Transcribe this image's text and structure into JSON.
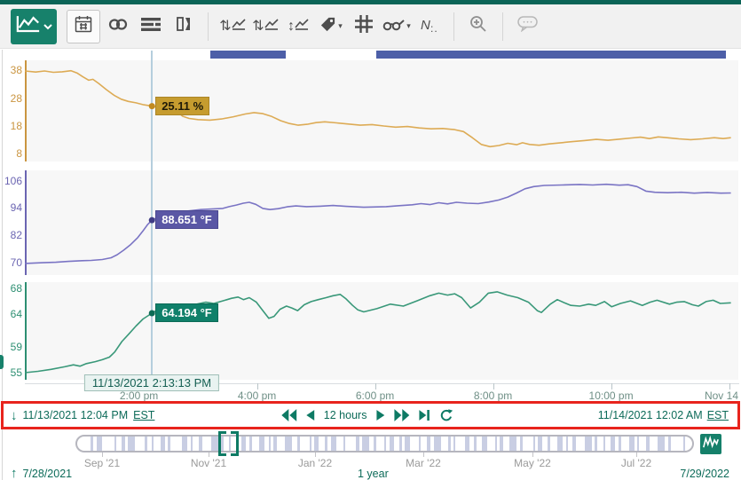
{
  "colors": {
    "accent_teal": "#0e7a64",
    "brand_dark_teal": "#0b6457",
    "event_bar_blue": "#4d5fa8",
    "annotation_red": "#e8241d",
    "cursor_line": "#b5cedd",
    "scrubber_stripe": "#c9cee3"
  },
  "toolbar": {
    "icons": [
      "trend-display",
      "calendar",
      "link",
      "details",
      "pane-toggle",
      "stacked-scales",
      "stacked-scales-alt",
      "single-scale",
      "tag",
      "grid",
      "trend-cursors",
      "value-labels",
      "zoom-in",
      "comments"
    ]
  },
  "controls": {
    "start_date": "11/13/2021 12:04 PM",
    "start_tz": "EST",
    "interval": "12 hours",
    "end_date": "11/14/2021 12:02 AM",
    "end_tz": "EST"
  },
  "timeline": {
    "months": [
      "Sep '21",
      "Nov '21",
      "Jan '22",
      "Mar '22",
      "May '22",
      "Jul '22"
    ],
    "month_centers": [
      115,
      235,
      355,
      477,
      600,
      717
    ],
    "range_start": "7/28/2021",
    "range_span": "1 year",
    "range_end": "7/29/2022"
  },
  "chart_data": {
    "type": "line",
    "x_axis": {
      "range_hours": [
        12.0667,
        24.0333
      ],
      "ticks": [
        {
          "hour": 14,
          "label": "2:00 pm"
        },
        {
          "hour": 16,
          "label": "4:00 pm"
        },
        {
          "hour": 18,
          "label": "6:00 pm"
        },
        {
          "hour": 20,
          "label": "8:00 pm"
        },
        {
          "hour": 22,
          "label": "10:00 pm"
        },
        {
          "hour": 24,
          "label": "Nov 14"
        }
      ]
    },
    "cursor": {
      "hour": 14.2203,
      "timestamp": "11/13/2021 2:13:13 PM"
    },
    "event_bars": [
      {
        "start_hour": 15.21,
        "end_hour": 16.49
      },
      {
        "start_hour": 18.02,
        "end_hour": 23.95
      }
    ],
    "charts": [
      {
        "unit": "%",
        "cursor_label": "25.11 %",
        "cursor_value": 25.11,
        "line_color": "#ddab55",
        "tick_color": "#ca9540",
        "dot_color": "#c28a1e",
        "label_bg": "#c69c2f",
        "label_border": "#ab8526",
        "label_fg": "#1f1a08",
        "yticks": [
          38,
          28,
          18,
          8
        ],
        "ylim": [
          5.3,
          41.5
        ],
        "points": [
          [
            12.07,
            37.7
          ],
          [
            12.25,
            37.3
          ],
          [
            12.4,
            37.7
          ],
          [
            12.55,
            37.2
          ],
          [
            12.7,
            37.4
          ],
          [
            12.85,
            37.8
          ],
          [
            12.95,
            37.0
          ],
          [
            13.05,
            35.6
          ],
          [
            13.15,
            34.4
          ],
          [
            13.22,
            34.7
          ],
          [
            13.32,
            33.2
          ],
          [
            13.45,
            31.0
          ],
          [
            13.58,
            29.0
          ],
          [
            13.7,
            27.6
          ],
          [
            13.82,
            26.8
          ],
          [
            13.95,
            26.3
          ],
          [
            14.08,
            25.6
          ],
          [
            14.22,
            25.11
          ],
          [
            14.34,
            24.5
          ],
          [
            14.44,
            24.9
          ],
          [
            14.54,
            24.6
          ],
          [
            14.64,
            23.2
          ],
          [
            14.74,
            21.5
          ],
          [
            14.85,
            20.7
          ],
          [
            15.0,
            20.3
          ],
          [
            15.2,
            20.1
          ],
          [
            15.4,
            20.5
          ],
          [
            15.6,
            21.3
          ],
          [
            15.8,
            22.3
          ],
          [
            15.95,
            22.8
          ],
          [
            16.1,
            22.4
          ],
          [
            16.25,
            21.4
          ],
          [
            16.4,
            19.9
          ],
          [
            16.55,
            18.9
          ],
          [
            16.7,
            18.3
          ],
          [
            16.85,
            18.6
          ],
          [
            17.0,
            19.2
          ],
          [
            17.15,
            19.5
          ],
          [
            17.35,
            19.1
          ],
          [
            17.55,
            18.7
          ],
          [
            17.75,
            18.3
          ],
          [
            17.95,
            18.5
          ],
          [
            18.15,
            18.0
          ],
          [
            18.35,
            17.6
          ],
          [
            18.55,
            17.8
          ],
          [
            18.75,
            17.3
          ],
          [
            18.95,
            17.0
          ],
          [
            19.15,
            17.1
          ],
          [
            19.35,
            16.7
          ],
          [
            19.5,
            16.0
          ],
          [
            19.65,
            13.8
          ],
          [
            19.8,
            11.4
          ],
          [
            19.95,
            10.6
          ],
          [
            20.1,
            11.0
          ],
          [
            20.25,
            11.8
          ],
          [
            20.4,
            11.3
          ],
          [
            20.5,
            12.0
          ],
          [
            20.62,
            11.4
          ],
          [
            20.78,
            11.1
          ],
          [
            20.95,
            11.6
          ],
          [
            21.15,
            12.0
          ],
          [
            21.35,
            12.4
          ],
          [
            21.55,
            12.8
          ],
          [
            21.75,
            13.2
          ],
          [
            21.95,
            12.9
          ],
          [
            22.15,
            13.3
          ],
          [
            22.35,
            13.7
          ],
          [
            22.5,
            14.0
          ],
          [
            22.65,
            13.5
          ],
          [
            22.8,
            14.1
          ],
          [
            22.95,
            13.8
          ],
          [
            23.15,
            13.4
          ],
          [
            23.35,
            13.1
          ],
          [
            23.55,
            13.4
          ],
          [
            23.75,
            13.8
          ],
          [
            23.9,
            13.5
          ],
          [
            24.03,
            13.8
          ]
        ]
      },
      {
        "unit": "°F",
        "cursor_label": "88.651 °F",
        "cursor_value": 88.651,
        "line_color": "#7a74c4",
        "tick_color": "#6b65b2",
        "dot_color": "#3f3c85",
        "label_bg": "#5a57a5",
        "label_border": "#4a4790",
        "label_fg": "#ffffff",
        "yticks": [
          106,
          94,
          82,
          70
        ],
        "ylim": [
          64.6,
          110.5
        ],
        "points": [
          [
            12.07,
            69.7
          ],
          [
            12.37,
            70.0
          ],
          [
            12.59,
            70.2
          ],
          [
            12.81,
            70.6
          ],
          [
            13.04,
            70.9
          ],
          [
            13.19,
            71.0
          ],
          [
            13.38,
            71.4
          ],
          [
            13.53,
            72.2
          ],
          [
            13.63,
            73.5
          ],
          [
            13.74,
            75.5
          ],
          [
            13.86,
            78.0
          ],
          [
            13.98,
            81.0
          ],
          [
            14.07,
            84.0
          ],
          [
            14.15,
            86.8
          ],
          [
            14.22,
            88.651
          ],
          [
            14.31,
            89.8
          ],
          [
            14.46,
            90.8
          ],
          [
            14.6,
            91.6
          ],
          [
            14.83,
            92.7
          ],
          [
            15.05,
            93.3
          ],
          [
            15.27,
            93.6
          ],
          [
            15.42,
            93.8
          ],
          [
            15.53,
            94.6
          ],
          [
            15.65,
            95.3
          ],
          [
            15.77,
            96.1
          ],
          [
            15.87,
            96.5
          ],
          [
            15.98,
            95.6
          ],
          [
            16.1,
            93.8
          ],
          [
            16.22,
            93.3
          ],
          [
            16.36,
            93.7
          ],
          [
            16.51,
            94.5
          ],
          [
            16.66,
            94.9
          ],
          [
            16.84,
            94.6
          ],
          [
            17.07,
            94.8
          ],
          [
            17.29,
            95.1
          ],
          [
            17.51,
            94.7
          ],
          [
            17.66,
            94.5
          ],
          [
            17.81,
            94.3
          ],
          [
            18.19,
            94.6
          ],
          [
            18.41,
            95.0
          ],
          [
            18.63,
            95.4
          ],
          [
            18.78,
            95.9
          ],
          [
            18.93,
            95.5
          ],
          [
            19.08,
            96.3
          ],
          [
            19.23,
            95.8
          ],
          [
            19.38,
            96.5
          ],
          [
            19.56,
            96.1
          ],
          [
            19.75,
            95.9
          ],
          [
            19.93,
            96.6
          ],
          [
            20.1,
            97.5
          ],
          [
            20.25,
            98.8
          ],
          [
            20.4,
            100.6
          ],
          [
            20.54,
            102.4
          ],
          [
            20.69,
            103.4
          ],
          [
            20.87,
            103.9
          ],
          [
            21.17,
            104.1
          ],
          [
            21.47,
            104.3
          ],
          [
            21.69,
            104.1
          ],
          [
            21.92,
            104.4
          ],
          [
            22.14,
            104.0
          ],
          [
            22.29,
            104.2
          ],
          [
            22.44,
            103.4
          ],
          [
            22.59,
            101.4
          ],
          [
            22.74,
            100.9
          ],
          [
            22.96,
            100.7
          ],
          [
            23.19,
            100.9
          ],
          [
            23.41,
            100.5
          ],
          [
            23.63,
            100.8
          ],
          [
            23.86,
            100.5
          ],
          [
            24.03,
            100.6
          ]
        ]
      },
      {
        "unit": "°F",
        "cursor_label": "64.194 °F",
        "cursor_value": 64.194,
        "line_color": "#399879",
        "tick_color": "#2d8f72",
        "dot_color": "#0c6b55",
        "label_bg": "#10806a",
        "label_border": "#0a6b57",
        "label_fg": "#ffffff",
        "yticks": [
          68,
          64,
          59,
          55
        ],
        "ylim": [
          53.9,
          69.0
        ],
        "points": [
          [
            12.07,
            55.0
          ],
          [
            12.29,
            55.2
          ],
          [
            12.51,
            55.5
          ],
          [
            12.74,
            55.9
          ],
          [
            12.89,
            56.2
          ],
          [
            13.0,
            56.0
          ],
          [
            13.11,
            56.4
          ],
          [
            13.26,
            56.7
          ],
          [
            13.38,
            57.0
          ],
          [
            13.5,
            57.4
          ],
          [
            13.59,
            58.2
          ],
          [
            13.71,
            59.8
          ],
          [
            13.83,
            61.0
          ],
          [
            13.95,
            62.2
          ],
          [
            14.07,
            63.3
          ],
          [
            14.22,
            64.194
          ],
          [
            14.31,
            64.7
          ],
          [
            14.42,
            64.5
          ],
          [
            14.54,
            65.0
          ],
          [
            14.68,
            65.4
          ],
          [
            14.83,
            65.3
          ],
          [
            14.98,
            65.6
          ],
          [
            15.13,
            65.9
          ],
          [
            15.27,
            65.7
          ],
          [
            15.42,
            66.1
          ],
          [
            15.57,
            66.5
          ],
          [
            15.68,
            66.7
          ],
          [
            15.77,
            66.3
          ],
          [
            15.87,
            66.6
          ],
          [
            15.99,
            65.9
          ],
          [
            16.1,
            64.6
          ],
          [
            16.2,
            63.4
          ],
          [
            16.29,
            63.7
          ],
          [
            16.39,
            64.8
          ],
          [
            16.5,
            65.3
          ],
          [
            16.59,
            65.0
          ],
          [
            16.69,
            64.6
          ],
          [
            16.8,
            65.5
          ],
          [
            16.92,
            66.0
          ],
          [
            17.04,
            66.3
          ],
          [
            17.17,
            66.6
          ],
          [
            17.29,
            66.9
          ],
          [
            17.41,
            67.1
          ],
          [
            17.51,
            66.4
          ],
          [
            17.62,
            65.4
          ],
          [
            17.71,
            64.7
          ],
          [
            17.81,
            64.4
          ],
          [
            18.03,
            64.9
          ],
          [
            18.26,
            65.6
          ],
          [
            18.48,
            65.3
          ],
          [
            18.71,
            66.1
          ],
          [
            18.93,
            66.9
          ],
          [
            19.08,
            67.3
          ],
          [
            19.23,
            67.0
          ],
          [
            19.35,
            67.2
          ],
          [
            19.47,
            66.6
          ],
          [
            19.62,
            65.0
          ],
          [
            19.77,
            65.9
          ],
          [
            19.92,
            67.3
          ],
          [
            20.07,
            67.5
          ],
          [
            20.24,
            67.0
          ],
          [
            20.42,
            66.6
          ],
          [
            20.6,
            65.9
          ],
          [
            20.75,
            64.6
          ],
          [
            20.82,
            64.3
          ],
          [
            20.97,
            65.6
          ],
          [
            21.09,
            66.3
          ],
          [
            21.21,
            65.8
          ],
          [
            21.32,
            65.4
          ],
          [
            21.47,
            65.3
          ],
          [
            21.62,
            65.6
          ],
          [
            21.74,
            65.4
          ],
          [
            21.89,
            66.0
          ],
          [
            22.01,
            65.2
          ],
          [
            22.16,
            65.7
          ],
          [
            22.33,
            66.1
          ],
          [
            22.53,
            65.4
          ],
          [
            22.66,
            65.9
          ],
          [
            22.78,
            66.2
          ],
          [
            22.99,
            65.6
          ],
          [
            23.11,
            65.9
          ],
          [
            23.24,
            66.0
          ],
          [
            23.38,
            65.5
          ],
          [
            23.48,
            65.3
          ],
          [
            23.61,
            66.0
          ],
          [
            23.73,
            66.2
          ],
          [
            23.85,
            65.7
          ],
          [
            24.03,
            65.8
          ]
        ]
      }
    ]
  }
}
